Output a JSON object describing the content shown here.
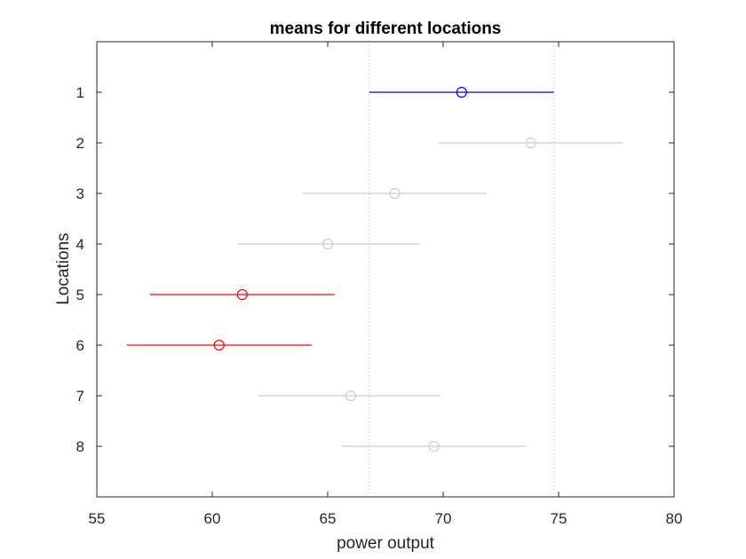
{
  "chart_data": {
    "type": "scatter",
    "title": "means for different locations",
    "xlabel": "power output",
    "ylabel": "Locations",
    "xlim": [
      55,
      80
    ],
    "ylim": [
      0,
      9
    ],
    "y_reversed": true,
    "xticks": [
      "55",
      "60",
      "65",
      "70",
      "75",
      "80"
    ],
    "yticks": [
      "1",
      "2",
      "3",
      "4",
      "5",
      "6",
      "7",
      "8"
    ],
    "grid": false,
    "reference_lines_x": [
      66.8,
      74.8
    ],
    "colors": {
      "selected": "#0000ff",
      "significant": "#ff0000",
      "other": "#cccccc",
      "reference": "#b0b0b0",
      "axes": "#262626"
    },
    "points": [
      {
        "y": 1,
        "mean": 70.8,
        "low": 66.8,
        "high": 74.8,
        "status": "selected"
      },
      {
        "y": 2,
        "mean": 73.8,
        "low": 69.8,
        "high": 77.8,
        "status": "other"
      },
      {
        "y": 3,
        "mean": 67.9,
        "low": 63.9,
        "high": 71.9,
        "status": "other"
      },
      {
        "y": 4,
        "mean": 65.0,
        "low": 61.1,
        "high": 69.0,
        "status": "other"
      },
      {
        "y": 5,
        "mean": 61.3,
        "low": 57.3,
        "high": 65.3,
        "status": "significant"
      },
      {
        "y": 6,
        "mean": 60.3,
        "low": 56.3,
        "high": 64.3,
        "status": "significant"
      },
      {
        "y": 7,
        "mean": 66.0,
        "low": 62.0,
        "high": 69.9,
        "status": "other"
      },
      {
        "y": 8,
        "mean": 69.6,
        "low": 65.6,
        "high": 73.6,
        "status": "other"
      }
    ]
  }
}
